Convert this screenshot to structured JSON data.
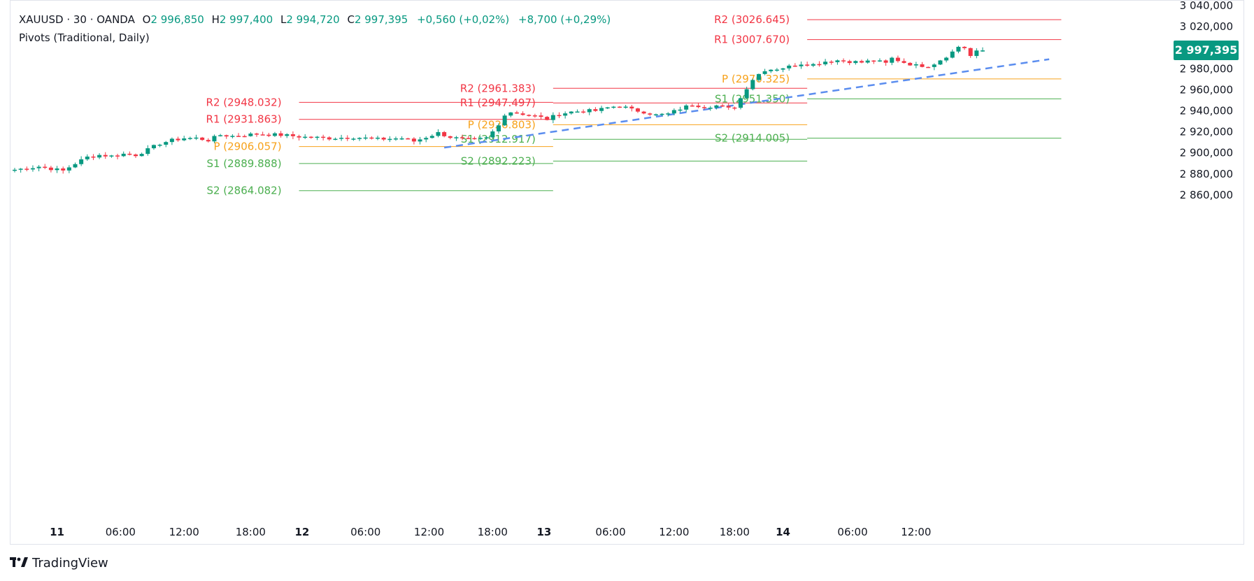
{
  "header": {
    "symbol": "XAUUSD · 30 · OANDA",
    "o_label": "O",
    "o_value": "2 996,850",
    "h_label": "H",
    "h_value": "2 997,400",
    "l_label": "L",
    "l_value": "2 994,720",
    "c_label": "C",
    "c_value": "2 997,395",
    "change": "+0,560 (+0,02%)",
    "day_change": "+8,700 (+0,29%)",
    "indicator": "Pivots (Traditional, Daily)"
  },
  "last_price_label": "2 997,395",
  "brand": "TradingView",
  "colors": {
    "up": "#089981",
    "down": "#f23645",
    "resistance": "#f23645",
    "pivot": "#f7a21b",
    "support": "#4caf50",
    "trendline": "#5b8def",
    "axis_text": "#131722"
  },
  "chart_data": {
    "type": "candlestick",
    "title": "XAUUSD · 30 · OANDA",
    "xlabel": "",
    "ylabel": "",
    "ylim": [
      2852,
      3042
    ],
    "x_ticks": [
      "11",
      "06:00",
      "12:00",
      "18:00",
      "12",
      "06:00",
      "12:00",
      "18:00",
      "13",
      "06:00",
      "12:00",
      "18:00",
      "14",
      "06:00",
      "12:00"
    ],
    "y_ticks": [
      "3 040,000",
      "3 020,000",
      "3 000,000",
      "2 980,000",
      "2 960,000",
      "2 940,000",
      "2 920,000",
      "2 900,000",
      "2 880,000",
      "2 860,000"
    ],
    "y_tick_values": [
      3040,
      3020,
      3000,
      2980,
      2960,
      2940,
      2920,
      2900,
      2880,
      2860
    ],
    "anchors": [
      [
        0,
        2884
      ],
      [
        4,
        2887
      ],
      [
        8,
        2883
      ],
      [
        10,
        2890
      ],
      [
        12,
        2896
      ],
      [
        14,
        2898
      ],
      [
        16,
        2897
      ],
      [
        18,
        2899
      ],
      [
        20,
        2898
      ],
      [
        22,
        2903
      ],
      [
        24,
        2909
      ],
      [
        26,
        2912
      ],
      [
        28,
        2914
      ],
      [
        30,
        2914
      ],
      [
        32,
        2912
      ],
      [
        34,
        2917
      ],
      [
        36,
        2916
      ],
      [
        40,
        2918
      ],
      [
        44,
        2917
      ],
      [
        48,
        2915
      ],
      [
        52,
        2914
      ],
      [
        56,
        2915
      ],
      [
        60,
        2913
      ],
      [
        64,
        2914
      ],
      [
        66,
        2911
      ],
      [
        68,
        2915
      ],
      [
        70,
        2919
      ],
      [
        72,
        2915
      ],
      [
        74,
        2913
      ],
      [
        76,
        2912
      ],
      [
        77,
        2913
      ],
      [
        78,
        2914
      ],
      [
        79,
        2920
      ],
      [
        80,
        2926
      ],
      [
        81,
        2937
      ],
      [
        82,
        2939
      ],
      [
        84,
        2937
      ],
      [
        86,
        2935
      ],
      [
        88,
        2932
      ],
      [
        90,
        2937
      ],
      [
        92,
        2939
      ],
      [
        94,
        2940
      ],
      [
        96,
        2940
      ],
      [
        98,
        2943
      ],
      [
        100,
        2945
      ],
      [
        102,
        2941
      ],
      [
        104,
        2939
      ],
      [
        106,
        2936
      ],
      [
        108,
        2937
      ],
      [
        110,
        2942
      ],
      [
        112,
        2946
      ],
      [
        114,
        2944
      ],
      [
        116,
        2945
      ],
      [
        118,
        2942
      ],
      [
        119,
        2944
      ],
      [
        120,
        2952
      ],
      [
        121,
        2962
      ],
      [
        122,
        2970
      ],
      [
        123,
        2975
      ],
      [
        124,
        2979
      ],
      [
        126,
        2980
      ],
      [
        128,
        2982
      ],
      [
        130,
        2985
      ],
      [
        132,
        2984
      ],
      [
        134,
        2987
      ],
      [
        136,
        2988
      ],
      [
        138,
        2987
      ],
      [
        140,
        2986
      ],
      [
        142,
        2988
      ],
      [
        144,
        2985
      ],
      [
        145,
        2990
      ],
      [
        147,
        2986
      ],
      [
        149,
        2983
      ],
      [
        151,
        2983
      ],
      [
        152,
        2985
      ],
      [
        154,
        2992
      ],
      [
        155,
        2996
      ],
      [
        156,
        3001
      ],
      [
        157,
        3000
      ],
      [
        158,
        2992
      ],
      [
        159,
        2996
      ],
      [
        160,
        2997.4
      ]
    ],
    "last_close": 2997.395,
    "trendline": {
      "from": [
        71,
        2905
      ],
      "to": [
        171,
        2989
      ]
    },
    "pivot_days": [
      {
        "from": 47,
        "to": 89,
        "levels": [
          {
            "name": "R2",
            "value": 2948.032,
            "label": "R2 (2948.032)"
          },
          {
            "name": "R1",
            "value": 2931.863,
            "label": "R1 (2931.863)"
          },
          {
            "name": "P",
            "value": 2906.057,
            "label": "P (2906.057)"
          },
          {
            "name": "S1",
            "value": 2889.888,
            "label": "S1 (2889.888)"
          },
          {
            "name": "S2",
            "value": 2864.082,
            "label": "S2 (2864.082)"
          }
        ]
      },
      {
        "from": 89,
        "to": 131,
        "levels": [
          {
            "name": "R2",
            "value": 2961.383,
            "label": "R2 (2961.383)"
          },
          {
            "name": "R1",
            "value": 2947.497,
            "label": "R1 (2947.497)"
          },
          {
            "name": "P",
            "value": 2926.803,
            "label": "P (2926.803)"
          },
          {
            "name": "S1",
            "value": 2912.917,
            "label": "S1 (2912.917)"
          },
          {
            "name": "S2",
            "value": 2892.223,
            "label": "S2 (2892.223)"
          }
        ]
      },
      {
        "from": 131,
        "to": 173,
        "levels": [
          {
            "name": "R2",
            "value": 3026.645,
            "label": "R2 (3026.645)"
          },
          {
            "name": "R1",
            "value": 3007.67,
            "label": "R1 (3007.670)"
          },
          {
            "name": "P",
            "value": 2970.325,
            "label": "P (2970.325)"
          },
          {
            "name": "S1",
            "value": 2951.35,
            "label": "S1 (2951.350)"
          },
          {
            "name": "S2",
            "value": 2914.005,
            "label": "S2 (2914.005)"
          }
        ]
      }
    ]
  }
}
